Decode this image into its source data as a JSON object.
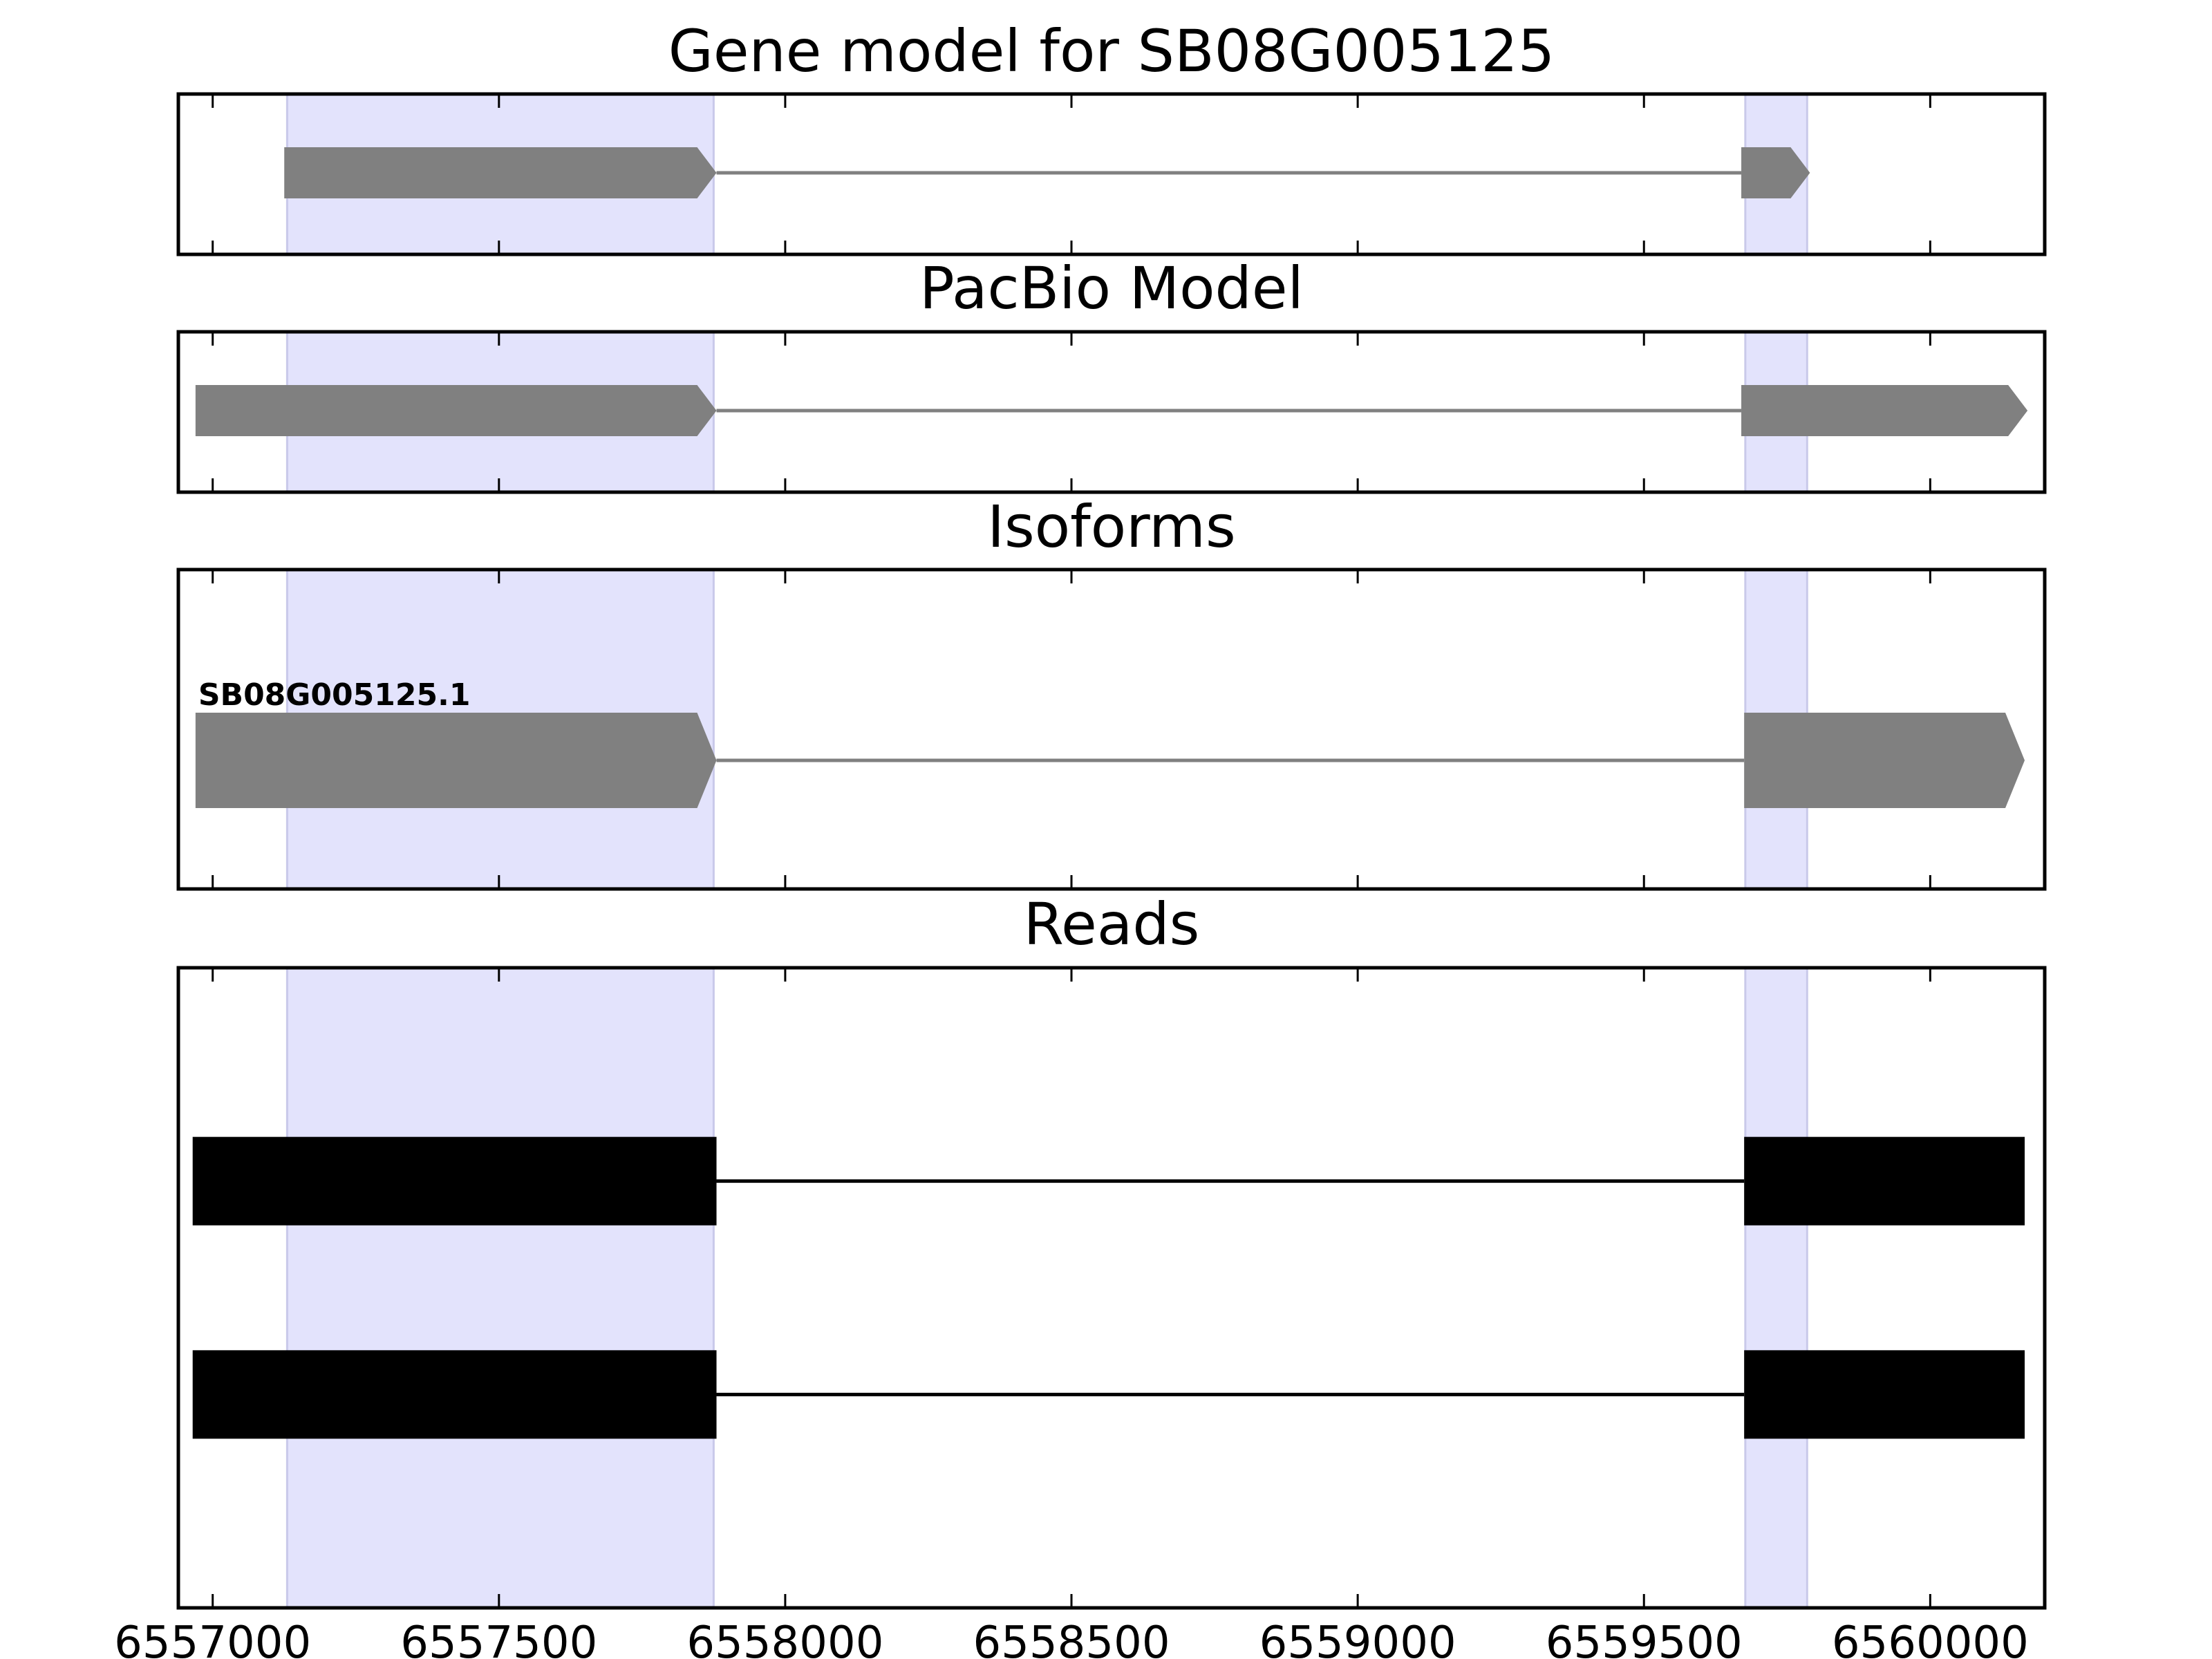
{
  "chart_data": {
    "type": "gene-track",
    "xlim": [
      6556940,
      6560200
    ],
    "x_ticks": [
      6557000,
      6557500,
      6558000,
      6558500,
      6559000,
      6559500,
      6560000
    ],
    "x_tick_labels": [
      "6557000",
      "6557500",
      "6558000",
      "6558500",
      "6559000",
      "6559500",
      "6560000"
    ],
    "highlight_regions": [
      [
        6557130,
        6557875
      ],
      [
        6559677,
        6559785
      ]
    ],
    "highlight_color": "#e3e3fc",
    "panels": [
      {
        "title": "Gene model for SB08G005125",
        "kind": "model",
        "color": "#808080",
        "strand": "+",
        "exons": [
          [
            6557125,
            6557880
          ],
          [
            6559670,
            6559790
          ]
        ],
        "introns": [
          [
            6557880,
            6559670
          ]
        ]
      },
      {
        "title": "PacBio Model",
        "kind": "model",
        "color": "#808080",
        "strand": "+",
        "exons": [
          [
            6556970,
            6557880
          ],
          [
            6559670,
            6560170
          ]
        ],
        "introns": [
          [
            6557880,
            6559670
          ]
        ]
      },
      {
        "title": "Isoforms",
        "kind": "isoforms",
        "color": "#808080",
        "strand": "+",
        "isoforms": [
          {
            "label": "SB08G005125.1",
            "exons": [
              [
                6556970,
                6557880
              ],
              [
                6559675,
                6560165
              ]
            ],
            "introns": [
              [
                6557880,
                6559675
              ]
            ]
          }
        ]
      },
      {
        "title": "Reads",
        "kind": "reads",
        "color": "#000000",
        "reads": [
          {
            "exons": [
              [
                6556965,
                6557880
              ],
              [
                6559675,
                6560165
              ]
            ],
            "introns": [
              [
                6557880,
                6559675
              ]
            ]
          },
          {
            "exons": [
              [
                6556965,
                6557880
              ],
              [
                6559675,
                6560165
              ]
            ],
            "introns": [
              [
                6557880,
                6559675
              ]
            ]
          }
        ]
      }
    ]
  }
}
